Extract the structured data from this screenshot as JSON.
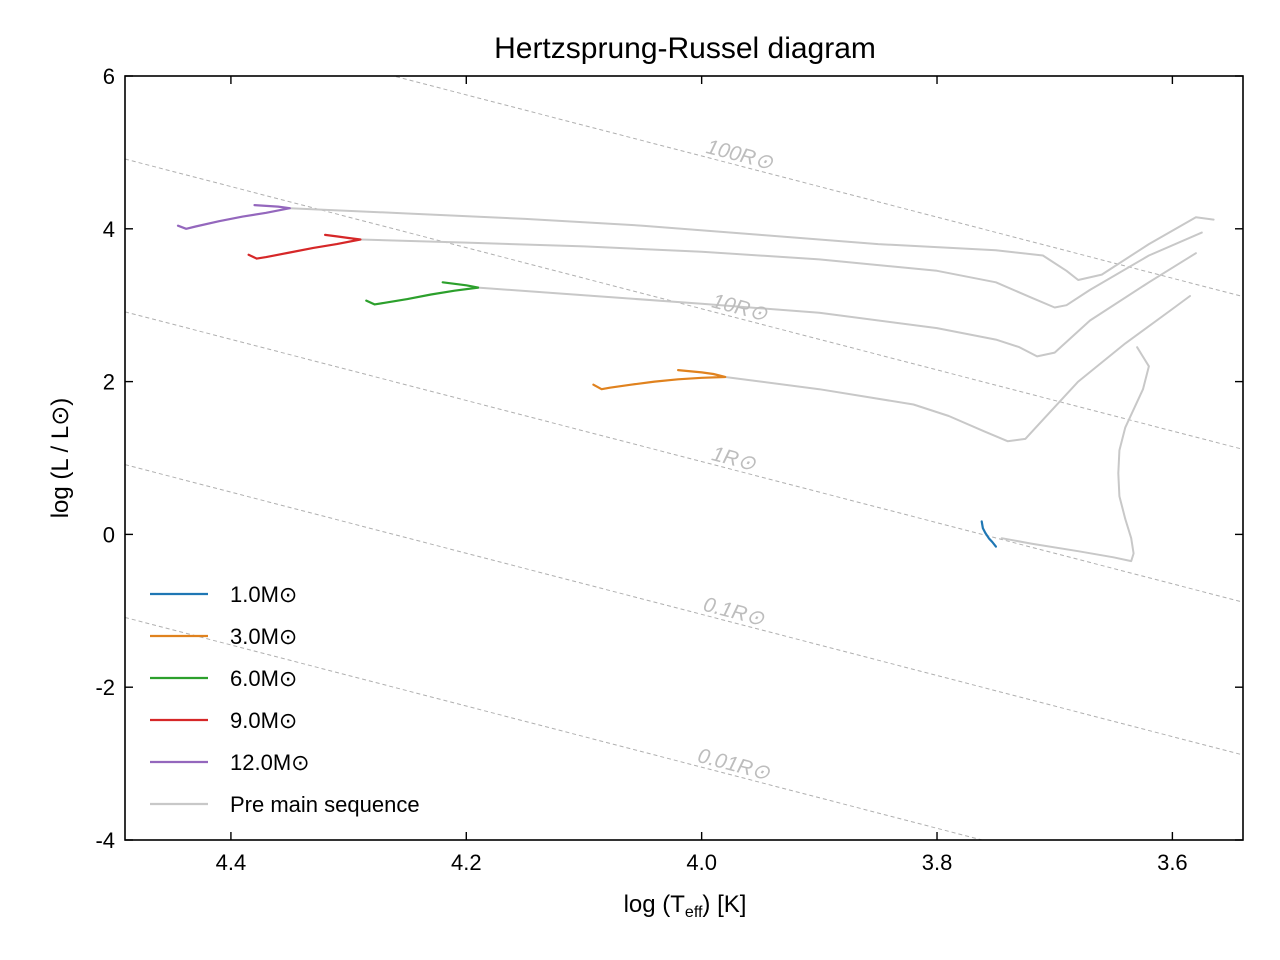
{
  "chart_data": {
    "type": "line",
    "title": "Hertzsprung-Russel diagram",
    "xlabel_parts": [
      "log (T",
      "eff",
      ") [K]"
    ],
    "ylabel": "log (L / L⊙)",
    "xlim": [
      4.49,
      3.54
    ],
    "ylim": [
      -4,
      6
    ],
    "x_reversed": true,
    "xticks": [
      {
        "value": 4.4,
        "label": "4.4"
      },
      {
        "value": 4.2,
        "label": "4.2"
      },
      {
        "value": 4.0,
        "label": "4.0"
      },
      {
        "value": 3.8,
        "label": "3.8"
      },
      {
        "value": 3.6,
        "label": "3.6"
      }
    ],
    "yticks": [
      {
        "value": 6,
        "label": "6"
      },
      {
        "value": 4,
        "label": "4"
      },
      {
        "value": 2,
        "label": "2"
      },
      {
        "value": 0,
        "label": "0"
      },
      {
        "value": -2,
        "label": "-2"
      },
      {
        "value": -4,
        "label": "-4"
      }
    ],
    "grid": false,
    "legend_position": "lower-left",
    "radius_lines": [
      {
        "label": "100R⊙",
        "log_r": 2,
        "label_x": 3.97
      },
      {
        "label": "10R⊙",
        "log_r": 1,
        "label_x": 3.97
      },
      {
        "label": "1R⊙",
        "log_r": 0,
        "label_x": 3.975
      },
      {
        "label": "0.1R⊙",
        "log_r": -1,
        "label_x": 3.975
      },
      {
        "label": "0.01R⊙",
        "log_r": -2,
        "label_x": 3.975
      }
    ],
    "radius_line_color": "#b0b0b0",
    "series": [
      {
        "name": "1.0M⊙",
        "color": "#1f77b4",
        "x": [
          3.762,
          3.761,
          3.759,
          3.756,
          3.753,
          3.75
        ],
        "y": [
          0.17,
          0.08,
          0.02,
          -0.05,
          -0.1,
          -0.16
        ]
      },
      {
        "name": "3.0M⊙",
        "color": "#e0821e",
        "x": [
          4.092,
          4.085,
          4.078,
          4.06,
          4.04,
          4.02,
          4.0,
          3.98,
          3.99,
          4.0,
          4.02
        ],
        "y": [
          1.96,
          1.9,
          1.92,
          1.96,
          2.0,
          2.03,
          2.05,
          2.06,
          2.1,
          2.12,
          2.15
        ]
      },
      {
        "name": "6.0M⊙",
        "color": "#2ca02c",
        "x": [
          4.285,
          4.278,
          4.27,
          4.25,
          4.23,
          4.21,
          4.19,
          4.2,
          4.21,
          4.22
        ],
        "y": [
          3.06,
          3.01,
          3.03,
          3.08,
          3.14,
          3.19,
          3.23,
          3.26,
          3.28,
          3.3
        ]
      },
      {
        "name": "9.0M⊙",
        "color": "#d62728",
        "x": [
          4.385,
          4.378,
          4.37,
          4.35,
          4.33,
          4.31,
          4.29,
          4.3,
          4.31,
          4.32
        ],
        "y": [
          3.66,
          3.61,
          3.63,
          3.69,
          3.75,
          3.8,
          3.86,
          3.88,
          3.9,
          3.92
        ]
      },
      {
        "name": "12.0M⊙",
        "color": "#9467bd",
        "x": [
          4.445,
          4.438,
          4.43,
          4.41,
          4.39,
          4.37,
          4.35,
          4.36,
          4.37,
          4.38
        ],
        "y": [
          4.04,
          4.0,
          4.03,
          4.1,
          4.16,
          4.21,
          4.27,
          4.29,
          4.3,
          4.31
        ]
      },
      {
        "name": "Pre main sequence",
        "color": "#c8c8c8",
        "tracks": [
          {
            "x": [
              3.745,
              3.72,
              3.68,
              3.65,
              3.635,
              3.633,
              3.635,
              3.64,
              3.645,
              3.646,
              3.645,
              3.64,
              3.625,
              3.62,
              3.63
            ],
            "y": [
              -0.05,
              -0.12,
              -0.22,
              -0.3,
              -0.35,
              -0.25,
              -0.05,
              0.2,
              0.5,
              0.8,
              1.1,
              1.4,
              1.9,
              2.2,
              2.45
            ]
          },
          {
            "x": [
              3.98,
              3.9,
              3.82,
              3.79,
              3.76,
              3.74,
              3.725,
              3.71,
              3.68,
              3.64,
              3.6,
              3.585
            ],
            "y": [
              2.06,
              1.9,
              1.7,
              1.55,
              1.35,
              1.22,
              1.25,
              1.5,
              2.0,
              2.5,
              2.95,
              3.12
            ]
          },
          {
            "x": [
              4.19,
              4.1,
              4.0,
              3.9,
              3.8,
              3.75,
              3.73,
              3.715,
              3.7,
              3.67,
              3.62,
              3.58
            ],
            "y": [
              3.23,
              3.13,
              3.02,
              2.9,
              2.7,
              2.55,
              2.45,
              2.33,
              2.38,
              2.8,
              3.3,
              3.68
            ]
          },
          {
            "x": [
              4.29,
              4.2,
              4.1,
              4.0,
              3.9,
              3.8,
              3.75,
              3.72,
              3.7,
              3.69,
              3.67,
              3.62,
              3.575
            ],
            "y": [
              3.86,
              3.82,
              3.77,
              3.7,
              3.6,
              3.45,
              3.3,
              3.1,
              2.97,
              3.0,
              3.2,
              3.65,
              3.95
            ]
          },
          {
            "x": [
              4.35,
              4.25,
              4.15,
              4.05,
              3.95,
              3.85,
              3.75,
              3.71,
              3.69,
              3.68,
              3.66,
              3.62,
              3.58,
              3.565
            ],
            "y": [
              4.27,
              4.2,
              4.13,
              4.04,
              3.92,
              3.8,
              3.72,
              3.65,
              3.45,
              3.33,
              3.4,
              3.8,
              4.15,
              4.12
            ]
          }
        ]
      }
    ]
  }
}
